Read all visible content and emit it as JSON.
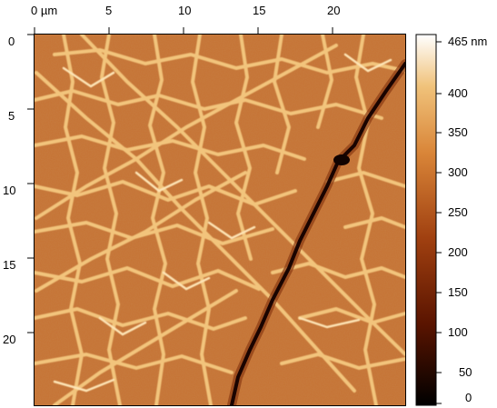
{
  "image": {
    "x_axis": {
      "ticks": [
        "0 µm",
        "5",
        "10",
        "15",
        "20"
      ]
    },
    "y_axis": {
      "ticks": [
        "0",
        "5",
        "10",
        "15",
        "20"
      ]
    },
    "colorbar": {
      "ticks": [
        "465 nm",
        "400",
        "350",
        "300",
        "250",
        "200",
        "150",
        "100",
        "50",
        "0"
      ],
      "colors": [
        "#000000",
        "#5a1400",
        "#a04010",
        "#d98538",
        "#f0c27a",
        "#ffffff"
      ]
    },
    "map_colors": {
      "base": "#c87434",
      "grain_line": "#f3c77f",
      "bright_line": "#fce2b0",
      "crack": "#1a0400"
    }
  }
}
